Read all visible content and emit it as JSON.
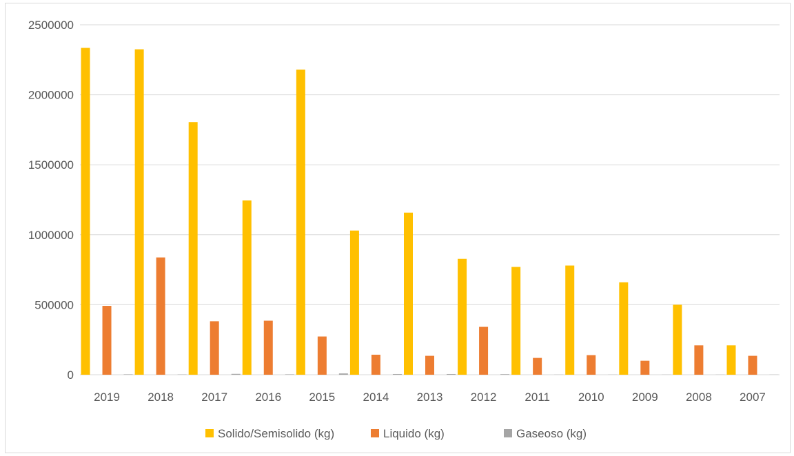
{
  "chart_data": {
    "type": "bar",
    "categories": [
      "2019",
      "2018",
      "2017",
      "2016",
      "2015",
      "2014",
      "2013",
      "2012",
      "2011",
      "2010",
      "2009",
      "2008",
      "2007"
    ],
    "series": [
      {
        "name": "Solido/Semisolido (kg)",
        "color": "#ffc000",
        "values": [
          2335000,
          2325000,
          1805000,
          1245000,
          2180000,
          1030000,
          1158000,
          828000,
          770000,
          780000,
          660000,
          500000,
          210000
        ]
      },
      {
        "name": "Liquido (kg)",
        "color": "#ed7d31",
        "values": [
          492000,
          838000,
          382000,
          386000,
          273000,
          143000,
          135000,
          342000,
          120000,
          140000,
          100000,
          210000,
          135000
        ]
      },
      {
        "name": "Gaseoso (kg)",
        "color": "#a5a5a5",
        "values": [
          3000,
          2000,
          6000,
          3000,
          9000,
          5000,
          5000,
          4000,
          1000,
          1000,
          1000,
          1000,
          1000
        ]
      }
    ],
    "yticks": [
      "0",
      "500000",
      "1000000",
      "1500000",
      "2000000",
      "2500000"
    ],
    "ylim": [
      0,
      2500000
    ],
    "title": "",
    "xlabel": "",
    "ylabel": "",
    "grid": true,
    "legend_position": "bottom"
  }
}
